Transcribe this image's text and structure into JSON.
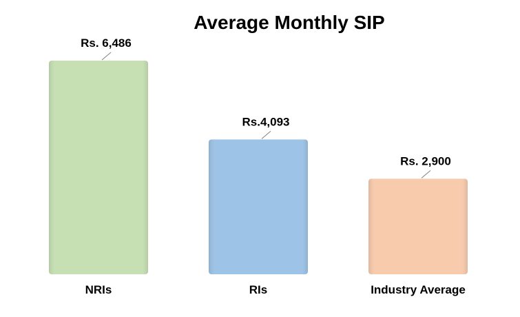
{
  "chart_data": {
    "type": "bar",
    "title": "Average Monthly SIP",
    "xlabel": "",
    "ylabel": "",
    "categories": [
      "NRIs",
      "RIs",
      "Industry Average"
    ],
    "values": [
      6486,
      4093,
      2900
    ],
    "data_labels": [
      "Rs. 6,486",
      "Rs.4,093",
      "Rs. 2,900"
    ],
    "colors": [
      "#c6e0b4",
      "#9dc3e6",
      "#f8cbad"
    ],
    "ylim": [
      0,
      7000
    ],
    "grid": false,
    "legend": "none"
  }
}
